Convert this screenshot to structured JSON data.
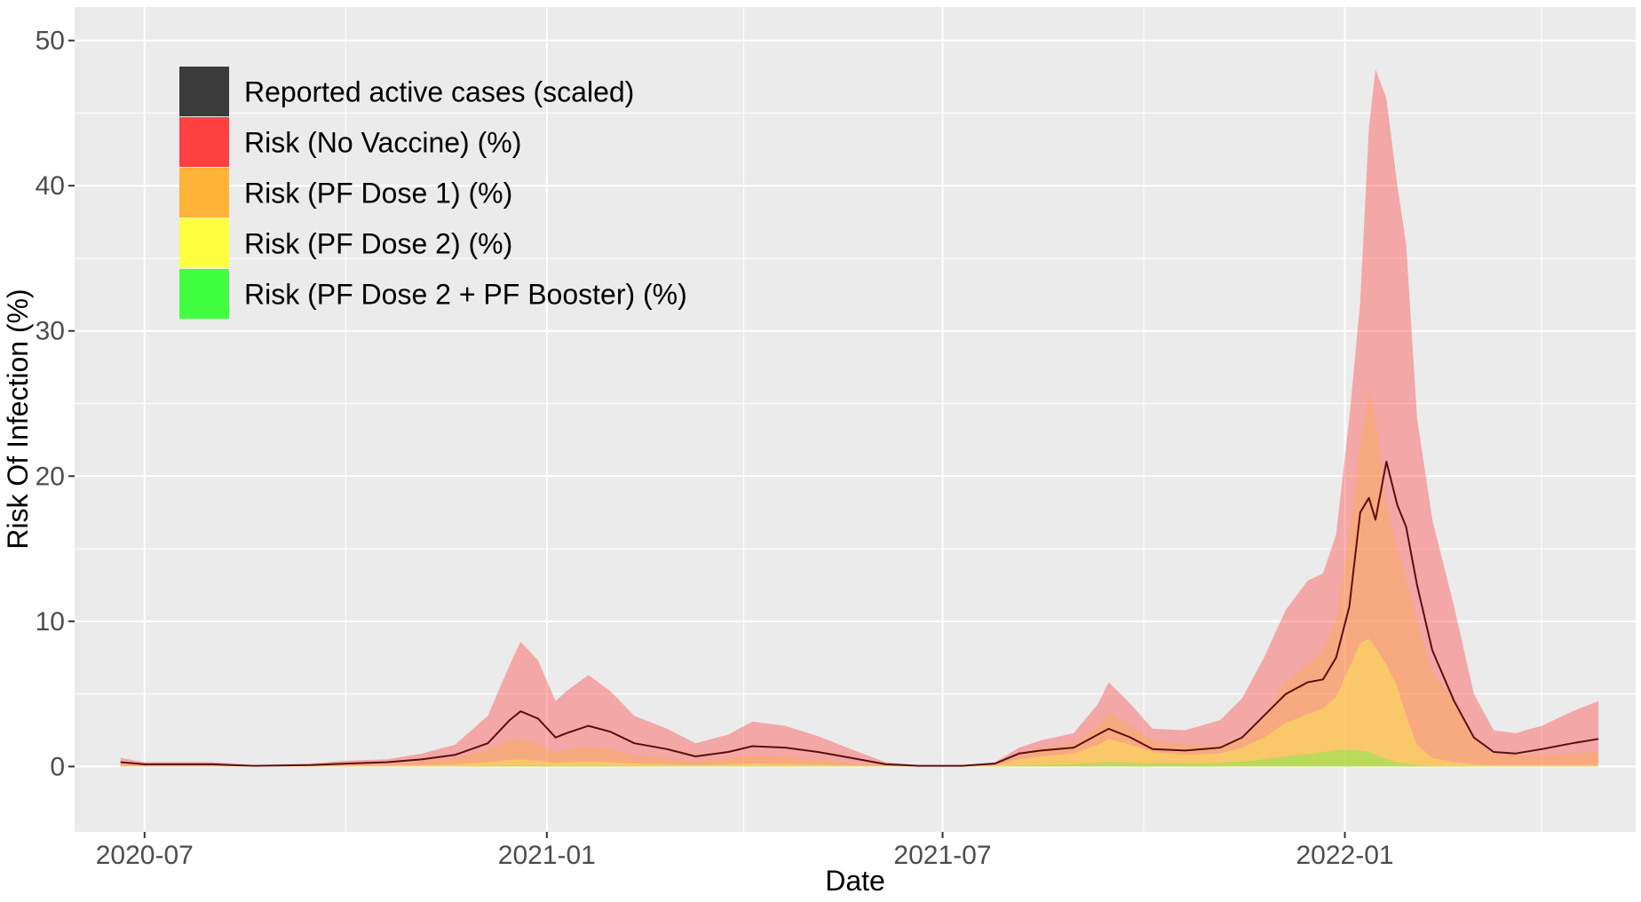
{
  "chart_data": {
    "type": "area",
    "xlabel": "Date",
    "ylabel": "Risk Of Infection (%)",
    "ylim": [
      -4.5,
      52.3
    ],
    "xlim": [
      "2020-05-30",
      "2022-05-14"
    ],
    "y_ticks": [
      0,
      10,
      20,
      30,
      40,
      50
    ],
    "x_ticks": [
      {
        "date": "2020-07-01",
        "label": "2020-07"
      },
      {
        "date": "2021-01-01",
        "label": "2021-01"
      },
      {
        "date": "2021-07-01",
        "label": "2021-07"
      },
      {
        "date": "2022-01-01",
        "label": "2022-01"
      }
    ],
    "x_minor_ticks": [
      "2020-10-01",
      "2021-04-01",
      "2021-10-01",
      "2022-04-01"
    ],
    "grid": true,
    "legend_position": "top-left",
    "background_color": "#ebebeb",
    "grid_color": "#ffffff",
    "x": [
      "2020-06-20",
      "2020-07-01",
      "2020-08-01",
      "2020-08-20",
      "2020-09-15",
      "2020-10-01",
      "2020-10-20",
      "2020-11-05",
      "2020-11-20",
      "2020-12-05",
      "2020-12-15",
      "2020-12-20",
      "2020-12-28",
      "2021-01-05",
      "2021-01-10",
      "2021-01-20",
      "2021-01-30",
      "2021-02-10",
      "2021-02-25",
      "2021-03-10",
      "2021-03-25",
      "2021-04-05",
      "2021-04-20",
      "2021-05-05",
      "2021-05-20",
      "2021-06-05",
      "2021-06-20",
      "2021-07-10",
      "2021-07-25",
      "2021-08-05",
      "2021-08-15",
      "2021-08-30",
      "2021-09-10",
      "2021-09-15",
      "2021-09-25",
      "2021-10-05",
      "2021-10-20",
      "2021-11-05",
      "2021-11-15",
      "2021-11-25",
      "2021-12-05",
      "2021-12-15",
      "2021-12-22",
      "2021-12-28",
      "2022-01-03",
      "2022-01-08",
      "2022-01-12",
      "2022-01-15",
      "2022-01-20",
      "2022-01-25",
      "2022-01-29",
      "2022-02-03",
      "2022-02-10",
      "2022-02-20",
      "2022-03-01",
      "2022-03-10",
      "2022-03-20",
      "2022-04-01",
      "2022-04-15",
      "2022-04-27"
    ],
    "series": [
      {
        "name": "Risk (No Vaccine) (%)",
        "color": "#ff4040",
        "opacity": 0.4,
        "values": [
          0.6,
          0.3,
          0.3,
          0.1,
          0.2,
          0.4,
          0.5,
          0.9,
          1.5,
          3.5,
          7.0,
          8.6,
          7.3,
          4.5,
          5.2,
          6.3,
          5.2,
          3.5,
          2.6,
          1.6,
          2.2,
          3.1,
          2.8,
          2.1,
          1.2,
          0.3,
          0.1,
          0.1,
          0.3,
          1.3,
          1.8,
          2.3,
          4.3,
          5.8,
          4.3,
          2.6,
          2.5,
          3.2,
          4.7,
          7.5,
          10.8,
          12.8,
          13.3,
          16.0,
          24.0,
          32.0,
          44.0,
          48.0,
          46.0,
          40.0,
          36.0,
          24.0,
          17.0,
          11.0,
          5.0,
          2.5,
          2.3,
          2.8,
          3.8,
          4.5
        ]
      },
      {
        "name": "Risk (PF Dose 1) (%)",
        "color": "#ffb338",
        "opacity": 0.35,
        "values": [
          0.2,
          0.1,
          0.1,
          0.05,
          0.1,
          0.2,
          0.3,
          0.4,
          0.6,
          1.2,
          1.8,
          1.9,
          1.6,
          1.0,
          1.2,
          1.4,
          1.2,
          0.8,
          0.6,
          0.4,
          0.6,
          0.8,
          0.7,
          0.5,
          0.3,
          0.1,
          0.05,
          0.05,
          0.2,
          0.9,
          1.3,
          1.6,
          2.8,
          3.7,
          2.8,
          1.8,
          1.5,
          1.5,
          2.0,
          3.5,
          5.8,
          7.0,
          8.0,
          10.0,
          16.0,
          22.0,
          26.0,
          24.0,
          18.0,
          15.0,
          13.0,
          10.0,
          6.5,
          4.5,
          2.0,
          1.0,
          0.8,
          0.8,
          0.9,
          1.0
        ]
      },
      {
        "name": "Risk (PF Dose 2) (%)",
        "color": "#ffff40",
        "opacity": 0.35,
        "values": [
          0.05,
          0.02,
          0.02,
          0.01,
          0.02,
          0.05,
          0.08,
          0.1,
          0.15,
          0.3,
          0.45,
          0.5,
          0.4,
          0.25,
          0.3,
          0.35,
          0.3,
          0.2,
          0.15,
          0.1,
          0.15,
          0.2,
          0.18,
          0.13,
          0.08,
          0.03,
          0.01,
          0.01,
          0.1,
          0.5,
          0.7,
          0.9,
          1.5,
          1.9,
          1.5,
          1.0,
          0.8,
          0.9,
          1.3,
          2.0,
          3.0,
          3.6,
          4.0,
          4.8,
          6.8,
          8.5,
          8.8,
          8.2,
          7.0,
          5.5,
          3.5,
          1.5,
          0.6,
          0.3,
          0.15,
          0.1,
          0.1,
          0.1,
          0.1,
          0.1
        ]
      },
      {
        "name": "Risk (PF Dose 2 + PF Booster) (%)",
        "color": "#40ff40",
        "opacity": 0.35,
        "values": [
          0,
          0,
          0,
          0,
          0,
          0,
          0,
          0.01,
          0.02,
          0.05,
          0.08,
          0.1,
          0.08,
          0.05,
          0.06,
          0.07,
          0.06,
          0.04,
          0.03,
          0.02,
          0.03,
          0.04,
          0.04,
          0.03,
          0.02,
          0.01,
          0,
          0,
          0.02,
          0.08,
          0.12,
          0.15,
          0.25,
          0.3,
          0.25,
          0.2,
          0.2,
          0.25,
          0.35,
          0.5,
          0.7,
          0.85,
          1.0,
          1.1,
          1.15,
          1.1,
          1.0,
          0.8,
          0.5,
          0.3,
          0.2,
          0.1,
          0.05,
          0.03,
          0.02,
          0.02,
          0.02,
          0.02,
          0.02,
          0.02
        ]
      },
      {
        "name": "Reported active cases (scaled)",
        "color": "#3b3b3b",
        "line_color": "#5a0f0f",
        "values": [
          0.3,
          0.15,
          0.15,
          0.05,
          0.1,
          0.2,
          0.3,
          0.5,
          0.8,
          1.6,
          3.2,
          3.8,
          3.3,
          2.0,
          2.3,
          2.8,
          2.4,
          1.6,
          1.2,
          0.7,
          1.0,
          1.4,
          1.3,
          1.0,
          0.6,
          0.15,
          0.05,
          0.05,
          0.2,
          0.9,
          1.1,
          1.3,
          2.2,
          2.6,
          2.0,
          1.2,
          1.1,
          1.3,
          2.0,
          3.5,
          5.0,
          5.8,
          6.0,
          7.5,
          11.0,
          17.5,
          18.5,
          17.0,
          21.0,
          18.0,
          16.5,
          12.5,
          8.0,
          4.5,
          2.0,
          1.0,
          0.9,
          1.2,
          1.6,
          1.9
        ]
      }
    ],
    "legend": [
      {
        "label": "Reported active cases (scaled)",
        "color": "#3b3b3b"
      },
      {
        "label": "Risk (No Vaccine) (%)",
        "color": "#ff4040"
      },
      {
        "label": "Risk (PF Dose 1) (%)",
        "color": "#ffb338"
      },
      {
        "label": "Risk (PF Dose 2) (%)",
        "color": "#ffff40"
      },
      {
        "label": "Risk (PF Dose 2 + PF Booster) (%)",
        "color": "#40ff40"
      }
    ]
  }
}
